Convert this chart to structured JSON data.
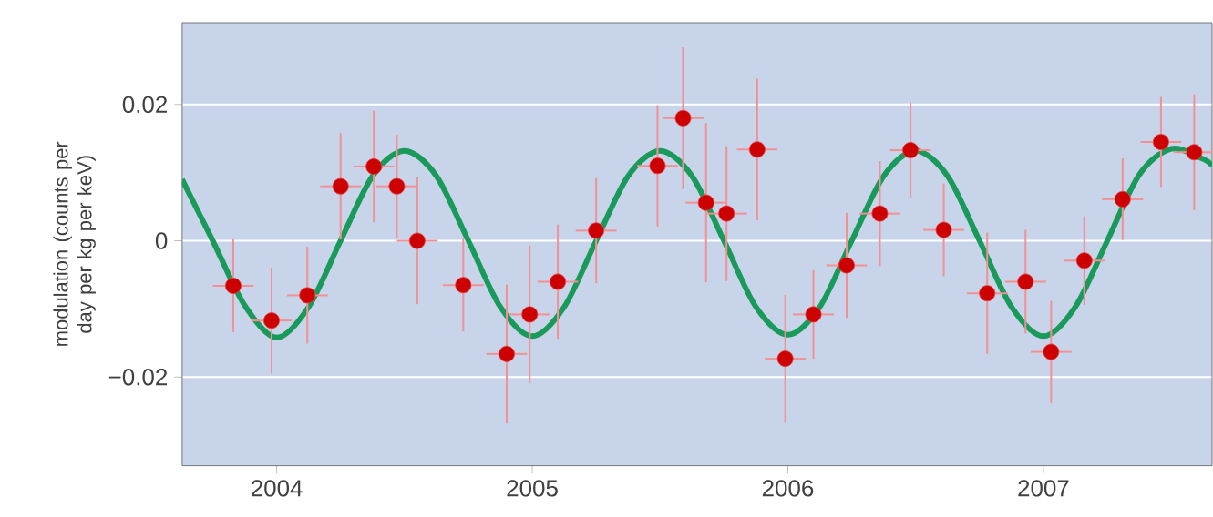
{
  "chart_data": {
    "type": "scatter",
    "ylabel": "modulation (counts per day per kg per keV)",
    "xlim": [
      2003.63,
      2007.66
    ],
    "xticks": [
      2004,
      2005,
      2006,
      2007
    ],
    "ylim": [
      -0.033,
      0.032
    ],
    "yticks": [
      {
        "value": -0.02,
        "label": "−0.02"
      },
      0,
      0.02
    ],
    "grid": "y",
    "series": [
      {
        "color": "#e8474b",
        "marker": "circle",
        "x": [
          2003.83,
          2003.98,
          2004.12,
          2004.25,
          2004.38,
          2004.47,
          2004.55,
          2004.73,
          2004.9,
          2004.99,
          2005.1,
          2005.25,
          2005.49,
          2005.59,
          2005.68,
          2005.76,
          2005.88,
          2005.99,
          2006.1,
          2006.23,
          2006.36,
          2006.48,
          2006.61,
          2006.78,
          2006.93,
          2007.03,
          2007.16,
          2007.31,
          2007.46,
          2007.59
        ],
        "values": [
          -0.0066,
          -0.0117,
          -0.008,
          0.008,
          0.0109,
          0.008,
          0.0,
          -0.0065,
          -0.0166,
          -0.0108,
          -0.006,
          0.0015,
          0.011,
          0.018,
          0.0056,
          0.004,
          0.0134,
          -0.0173,
          -0.0108,
          -0.0036,
          0.004,
          0.0133,
          0.0016,
          -0.0077,
          -0.006,
          -0.0163,
          -0.0029,
          0.0061,
          0.0145,
          0.013
        ],
        "errors": [
          0.0068,
          0.0078,
          0.0071,
          0.0078,
          0.0082,
          0.0076,
          0.0093,
          0.0068,
          0.0102,
          0.0101,
          0.0084,
          0.0077,
          0.0089,
          0.0104,
          0.0117,
          0.0099,
          0.0104,
          0.0094,
          0.0065,
          0.0077,
          0.0077,
          0.007,
          0.0068,
          0.0089,
          0.0076,
          0.0075,
          0.0065,
          0.006,
          0.0066,
          0.0085
        ],
        "xerrors": [
          0.08,
          0.08,
          0.08,
          0.08,
          0.08,
          0.08,
          0.08,
          0.08,
          0.08,
          0.08,
          0.08,
          0.08,
          0.08,
          0.08,
          0.08,
          0.08,
          0.08,
          0.08,
          0.08,
          0.08,
          0.08,
          0.08,
          0.08,
          0.08,
          0.08,
          0.08,
          0.08,
          0.08,
          0.08,
          0.08
        ]
      },
      {
        "type": "line",
        "color": "#1a9a5a",
        "x": [
          2003.63,
          2003.75,
          2003.875,
          2004.0,
          2004.125,
          2004.25,
          2004.375,
          2004.5,
          2004.625,
          2004.75,
          2004.875,
          2005.0,
          2005.125,
          2005.25,
          2005.375,
          2005.5,
          2005.625,
          2005.75,
          2005.875,
          2006.0,
          2006.125,
          2006.25,
          2006.375,
          2006.5,
          2006.625,
          2006.75,
          2006.875,
          2007.0,
          2007.125,
          2007.25,
          2007.375,
          2007.5,
          2007.625,
          2007.66
        ],
        "values": [
          0.009,
          0.0,
          -0.0095,
          -0.0142,
          -0.0097,
          0.0,
          0.0095,
          0.0132,
          0.0095,
          0.0,
          -0.0097,
          -0.014,
          -0.0097,
          0.0,
          0.0095,
          0.0132,
          0.0095,
          0.0,
          -0.0097,
          -0.0138,
          -0.0097,
          0.0,
          0.0095,
          0.0132,
          0.0095,
          0.0,
          -0.0097,
          -0.014,
          -0.0097,
          0.0,
          0.0097,
          0.0135,
          0.012,
          0.011
        ]
      }
    ]
  }
}
